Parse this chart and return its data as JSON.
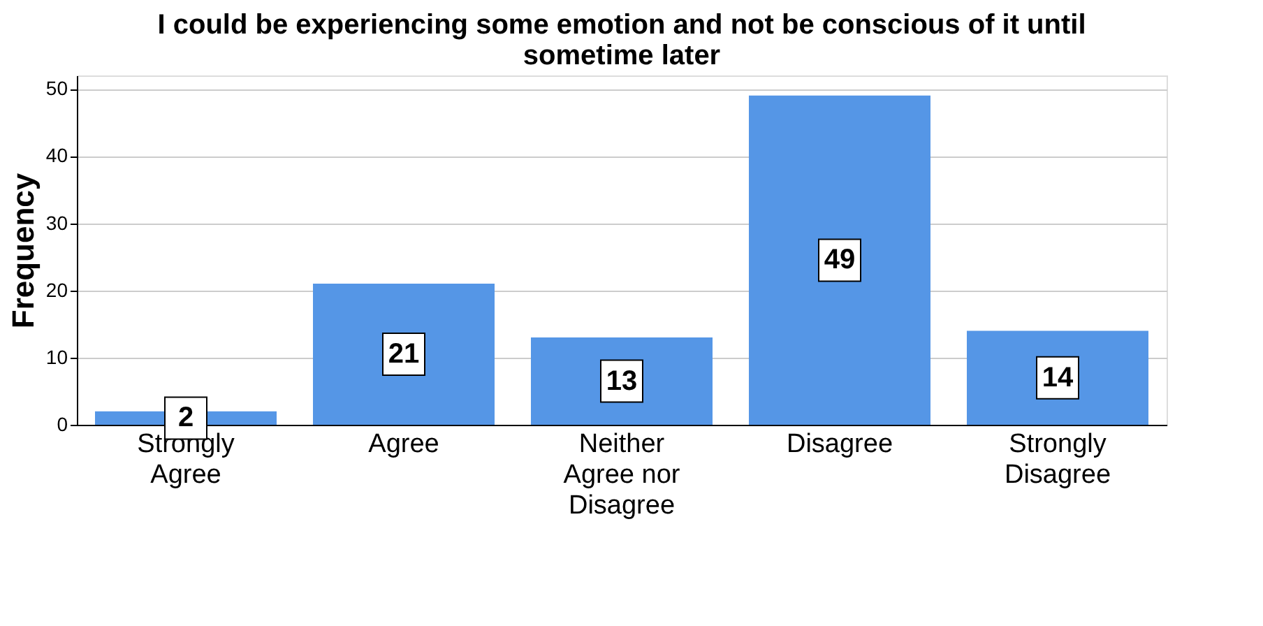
{
  "chart_data": {
    "type": "bar",
    "title": "I could be experiencing some emotion and not be conscious of it until sometime later",
    "ylabel": "Frequency",
    "categories": [
      "Strongly Agree",
      "Agree",
      "Neither Agree nor Disagree",
      "Disagree",
      "Strongly Disagree"
    ],
    "values": [
      2,
      21,
      13,
      49,
      14
    ],
    "color": "#5596e6",
    "ylim": [
      0,
      52
    ],
    "yticks": [
      0,
      10,
      20,
      30,
      40,
      50
    ],
    "grid": "y",
    "data_labels": true,
    "legend": false
  }
}
